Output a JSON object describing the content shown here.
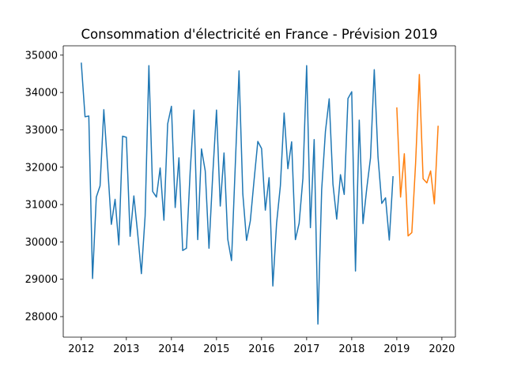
{
  "chart_data": {
    "type": "line",
    "title": "Consommation d'électricité en France - Prévision 2019",
    "xlabel": "",
    "ylabel": "",
    "xlim": [
      2011.6,
      2020.3
    ],
    "ylim": [
      27450,
      35250
    ],
    "x_ticks": [
      2012,
      2013,
      2014,
      2015,
      2016,
      2017,
      2018,
      2019,
      2020
    ],
    "y_ticks": [
      28000,
      29000,
      30000,
      31000,
      32000,
      33000,
      34000,
      35000
    ],
    "grid": false,
    "legend": "none",
    "series": [
      {
        "color": "#1f77b4",
        "x": [
          "2012-01",
          "2012-02",
          "2012-03",
          "2012-04",
          "2012-05",
          "2012-06",
          "2012-07",
          "2012-08",
          "2012-09",
          "2012-10",
          "2012-11",
          "2012-12",
          "2013-01",
          "2013-02",
          "2013-03",
          "2013-04",
          "2013-05",
          "2013-06",
          "2013-07",
          "2013-08",
          "2013-09",
          "2013-10",
          "2013-11",
          "2013-12",
          "2014-01",
          "2014-02",
          "2014-03",
          "2014-04",
          "2014-05",
          "2014-06",
          "2014-07",
          "2014-08",
          "2014-09",
          "2014-10",
          "2014-11",
          "2014-12",
          "2015-01",
          "2015-02",
          "2015-03",
          "2015-04",
          "2015-05",
          "2015-06",
          "2015-07",
          "2015-08",
          "2015-09",
          "2015-10",
          "2015-11",
          "2015-12",
          "2016-01",
          "2016-02",
          "2016-03",
          "2016-04",
          "2016-05",
          "2016-06",
          "2016-07",
          "2016-08",
          "2016-09",
          "2016-10",
          "2016-11",
          "2016-12",
          "2017-01",
          "2017-02",
          "2017-03",
          "2017-04",
          "2017-05",
          "2017-06",
          "2017-07",
          "2017-08",
          "2017-09",
          "2017-10",
          "2017-11",
          "2017-12",
          "2018-01",
          "2018-02",
          "2018-03",
          "2018-04",
          "2018-05",
          "2018-06",
          "2018-07",
          "2018-08",
          "2018-09",
          "2018-10",
          "2018-11",
          "2018-12"
        ],
        "values": [
          34800,
          33350,
          33370,
          29020,
          31200,
          31500,
          33540,
          32050,
          30470,
          31140,
          29920,
          32830,
          32800,
          30150,
          31230,
          30240,
          29150,
          30700,
          34720,
          31350,
          31200,
          31980,
          30580,
          33160,
          33630,
          30920,
          32250,
          29770,
          29830,
          31900,
          33530,
          30060,
          32490,
          31900,
          29830,
          31800,
          33530,
          30960,
          32380,
          30070,
          29500,
          32050,
          34580,
          31290,
          30040,
          30560,
          31650,
          32690,
          32500,
          30850,
          31720,
          28820,
          30500,
          31500,
          33450,
          31960,
          32680,
          30060,
          30500,
          31700,
          34720,
          30380,
          32740,
          27800,
          31400,
          32960,
          33830,
          31550,
          30610,
          31800,
          31270,
          33840,
          34020,
          29220,
          33260,
          30490,
          31430,
          32250,
          34610,
          32270,
          31030,
          31180,
          30050,
          31760
        ]
      },
      {
        "color": "#ff7f0e",
        "x": [
          "2019-01",
          "2019-02",
          "2019-03",
          "2019-04",
          "2019-05",
          "2019-06",
          "2019-07",
          "2019-08",
          "2019-09",
          "2019-10",
          "2019-11",
          "2019-12"
        ],
        "values": [
          33600,
          31200,
          32360,
          30160,
          30250,
          32100,
          34480,
          31690,
          31580,
          31900,
          31020,
          33110
        ]
      }
    ]
  }
}
